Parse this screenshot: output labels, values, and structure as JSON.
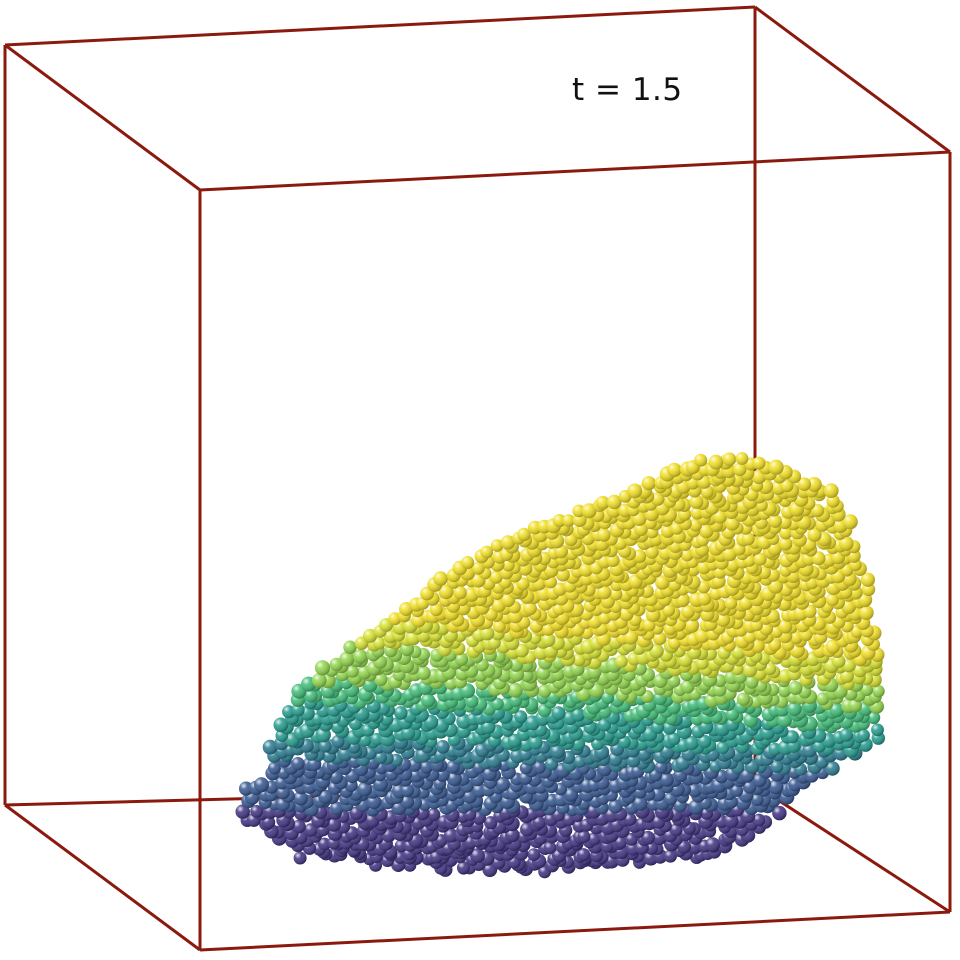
{
  "time_label": "t = 1.5",
  "colors": {
    "box_edge": "#8b1a0e",
    "colormap": [
      "#3b2f7f",
      "#31538e",
      "#25788d",
      "#1f998a",
      "#3bbb74",
      "#8fd548",
      "#d6e12a",
      "#f1de1f"
    ]
  }
}
